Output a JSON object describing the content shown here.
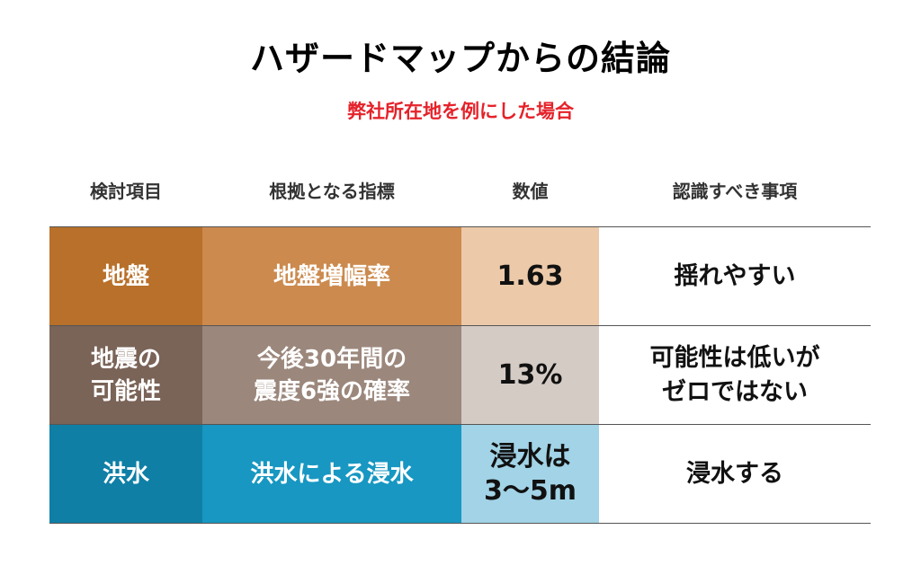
{
  "title": "ハザードマップからの結論",
  "subtitle": "弊社所在地を例にした場合",
  "headers": [
    "検討項目",
    "根拠となる指標",
    "数値",
    "認識すべき事項"
  ],
  "rows": [
    {
      "item": "地盤",
      "indicator": "地盤増幅率",
      "value": "1.63",
      "note": "揺れやすい",
      "colors": {
        "item": "#b8702a",
        "indicator": "#cc8a4e",
        "value": "#ecc9a8"
      }
    },
    {
      "item": "地震の\n可能性",
      "indicator": "今後30年間の\n震度6強の確率",
      "value": "13%",
      "note": "可能性は低いが\nゼロではない",
      "colors": {
        "item": "#7a6357",
        "indicator": "#9b877c",
        "value": "#d5cbc5"
      }
    },
    {
      "item": "洪水",
      "indicator": "洪水による浸水",
      "value": "浸水は\n3〜5m",
      "note": "浸水する",
      "colors": {
        "item": "#0f7fa6",
        "indicator": "#1797c2",
        "value": "#a2d3e6"
      }
    }
  ]
}
